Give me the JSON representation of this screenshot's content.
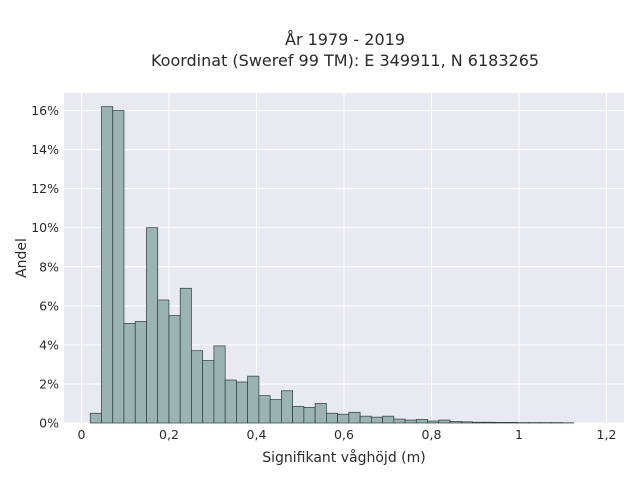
{
  "chart_data": {
    "type": "bar",
    "title": [
      "År 1979 - 2019",
      "Koordinat (Sweref 99 TM): E 349911, N 6183265"
    ],
    "xlabel": "Signifikant våghöjd (m)",
    "ylabel": "Andel",
    "xlim": [
      -0.04,
      1.24
    ],
    "ylim": [
      0,
      16.9
    ],
    "x_ticks": [
      0,
      0.2,
      0.4,
      0.6,
      0.8,
      1.0,
      1.2
    ],
    "x_tick_labels": [
      "0",
      "0,2",
      "0,4",
      "0,6",
      "0,8",
      "1",
      "1,2"
    ],
    "y_ticks": [
      0,
      2,
      4,
      6,
      8,
      10,
      12,
      14,
      16
    ],
    "y_tick_labels": [
      "0%",
      "2%",
      "4%",
      "6%",
      "8%",
      "10%",
      "12%",
      "14%",
      "16%"
    ],
    "grid": true,
    "bin_width": 0.0257,
    "bin_start": 0.02,
    "values": [
      0.5,
      16.2,
      16.0,
      5.1,
      5.2,
      10.0,
      6.3,
      5.5,
      6.9,
      3.7,
      3.2,
      3.95,
      2.2,
      2.1,
      2.4,
      1.4,
      1.2,
      1.65,
      0.85,
      0.8,
      1.0,
      0.5,
      0.45,
      0.55,
      0.35,
      0.3,
      0.35,
      0.2,
      0.15,
      0.18,
      0.1,
      0.15,
      0.08,
      0.06,
      0.04,
      0.04,
      0.03,
      0.03,
      0.02,
      0.02,
      0.02,
      0.02,
      0.01
    ]
  },
  "colors": {
    "plot_background": "#e9e9f1",
    "bar_fill": "#9bb4b3",
    "bar_edge": "#2b3a39",
    "grid": "#ffffff"
  }
}
